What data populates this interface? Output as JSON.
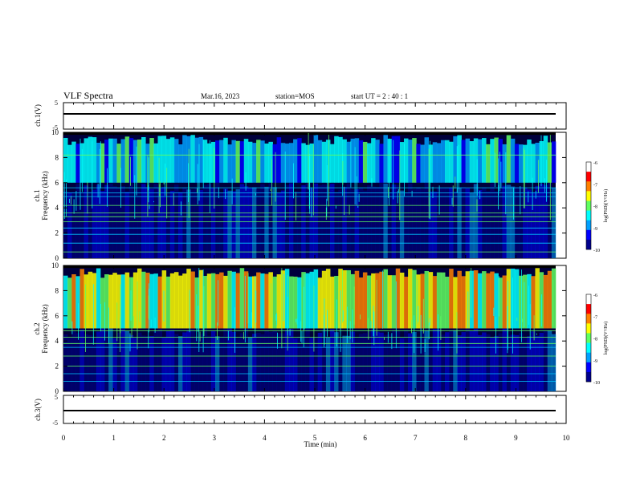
{
  "header": {
    "title": "VLF Spectra",
    "date": "Mar.16, 2023",
    "station": "station=MOS",
    "start": "start  UT =   2  : 40 : 1"
  },
  "chart_data": [
    {
      "type": "line",
      "panel": "ch1-waveform",
      "ylabel": "ch.1(V)",
      "ylim": [
        -5,
        5
      ],
      "yticks": [
        {
          "v": 5,
          "t": "5"
        },
        {
          "v": -5,
          "t": "-5"
        }
      ],
      "series": [
        {
          "x": [
            0,
            10
          ],
          "y": [
            -0.3,
            -0.3
          ]
        }
      ]
    },
    {
      "type": "heatmap",
      "panel": "ch1-spectrogram",
      "ylabel": "ch.1\nFrequency (kHz)",
      "xlim": [
        0,
        10
      ],
      "ylim": [
        0,
        10
      ],
      "yticks": [
        0,
        2,
        4,
        6,
        8,
        10
      ],
      "colorbar": {
        "label": "log(PSD)(V²/Hz)",
        "range": [
          -10,
          -6
        ],
        "ticks": [
          -6,
          -7,
          -8,
          -9,
          -10
        ]
      },
      "description_bands": [
        {
          "f_min": 6.0,
          "f_max": 9.8,
          "level": -8.5,
          "type": "sferics"
        },
        {
          "f_min": 0.0,
          "f_max": 6.0,
          "level": -9.6,
          "type": "background"
        }
      ],
      "tones_khz": [
        0.5,
        1.2,
        1.9,
        2.4,
        2.9,
        3.3,
        3.6,
        4.2,
        4.9,
        5.2,
        5.6,
        8.2
      ]
    },
    {
      "type": "heatmap",
      "panel": "ch2-spectrogram",
      "ylabel": "ch.2\nFrequency (kHz)",
      "xlim": [
        0,
        10
      ],
      "ylim": [
        0,
        10
      ],
      "yticks": [
        0,
        2,
        4,
        6,
        8,
        10
      ],
      "colorbar": {
        "label": "log(PSD)(V²/Hz)",
        "range": [
          -10,
          -6
        ],
        "ticks": [
          -6,
          -7,
          -8,
          -9,
          -10
        ]
      },
      "description_bands": [
        {
          "f_min": 5.0,
          "f_max": 9.8,
          "level": -7.4,
          "type": "chorus"
        },
        {
          "f_min": 0.0,
          "f_max": 5.0,
          "level": -9.6,
          "type": "background"
        }
      ],
      "tones_khz": [
        0.8,
        1.4,
        2.0,
        2.8,
        3.5,
        3.8,
        4.3,
        4.8
      ]
    },
    {
      "type": "line",
      "panel": "ch3-waveform",
      "ylabel": "ch.3(V)",
      "ylim": [
        -5,
        5
      ],
      "yticks": [
        {
          "v": 5,
          "t": "5"
        },
        {
          "v": -5,
          "t": "-5"
        }
      ],
      "series": [
        {
          "x": [
            0,
            10
          ],
          "y": [
            -0.3,
            -0.3
          ]
        }
      ]
    }
  ],
  "xaxis": {
    "label": "Time (min)",
    "ticks": [
      "0",
      "1",
      "2",
      "3",
      "4",
      "5",
      "6",
      "7",
      "8",
      "9",
      "10"
    ],
    "range": [
      0,
      10
    ]
  },
  "colors": {
    "background": "#ffffff",
    "axis": "#000000",
    "colormap": [
      "#000000",
      "#00008c",
      "#0000ff",
      "#00a0ff",
      "#00ffff",
      "#60ff60",
      "#ffff00",
      "#ff8000",
      "#ff0000",
      "#ffffff"
    ]
  }
}
